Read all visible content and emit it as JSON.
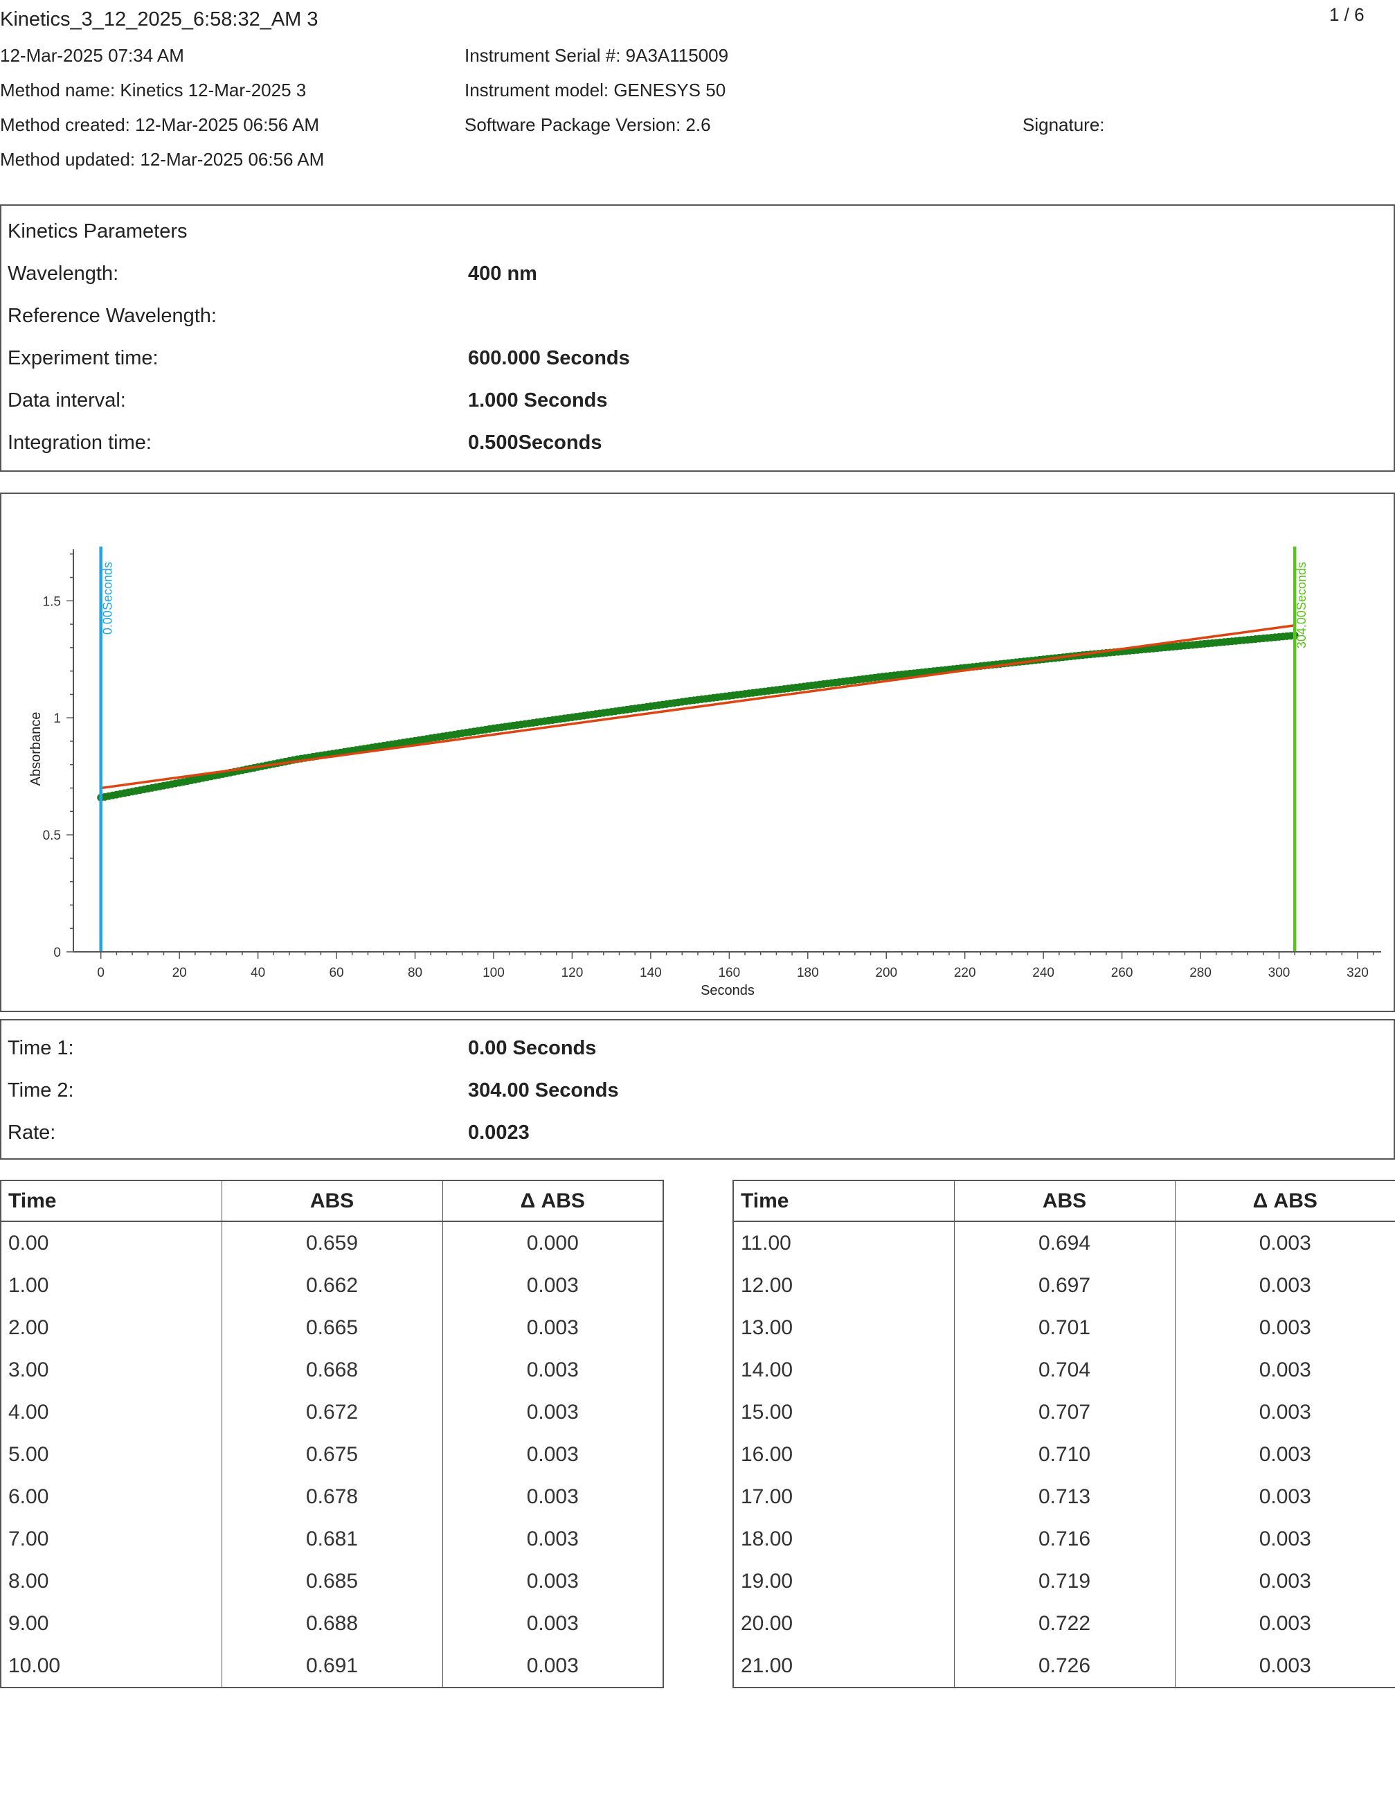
{
  "header": {
    "title": "Kinetics_3_12_2025_6:58:32_AM 3",
    "page_indicator": "1 / 6",
    "date": "12-Mar-2025 07:34 AM",
    "method_name": "Method name: Kinetics 12-Mar-2025 3",
    "method_created": "Method created: 12-Mar-2025 06:56 AM",
    "method_updated": "Method updated: 12-Mar-2025 06:56 AM",
    "serial": "Instrument Serial #: 9A3A115009",
    "model": "Instrument model: GENESYS 50",
    "software": "Software Package Version: 2.6",
    "signature": "Signature:"
  },
  "params": {
    "heading": "Kinetics Parameters",
    "wavelength_label": "Wavelength:",
    "wavelength_value": "400 nm",
    "ref_wavelength_label": "Reference Wavelength:",
    "ref_wavelength_value": "",
    "experiment_time_label": "Experiment time:",
    "experiment_time_value": "600.000 Seconds",
    "data_interval_label": "Data interval:",
    "data_interval_value": "1.000 Seconds",
    "integration_time_label": "Integration time:",
    "integration_time_value": "0.500Seconds"
  },
  "chart_data": {
    "type": "scatter",
    "xlabel": "Seconds",
    "ylabel": "Absorbance",
    "xlim": [
      -7,
      326
    ],
    "ylim": [
      0,
      1.72
    ],
    "x_ticks": [
      0,
      20,
      40,
      60,
      80,
      100,
      120,
      140,
      160,
      180,
      200,
      220,
      240,
      260,
      280,
      300,
      320
    ],
    "y_ticks": [
      0,
      0.5,
      1,
      1.5
    ],
    "y_tick_labels": [
      "0",
      "0.5",
      "1",
      "1.5"
    ],
    "series": [
      {
        "kind": "points",
        "color": "#1a7f1a",
        "x_start": 0,
        "x_end": 304,
        "x_step": 1,
        "anchors": [
          {
            "x": 0,
            "y": 0.659
          },
          {
            "x": 10,
            "y": 0.691
          },
          {
            "x": 21,
            "y": 0.726
          },
          {
            "x": 50,
            "y": 0.823
          },
          {
            "x": 100,
            "y": 0.955
          },
          {
            "x": 150,
            "y": 1.073
          },
          {
            "x": 200,
            "y": 1.178
          },
          {
            "x": 250,
            "y": 1.268
          },
          {
            "x": 304,
            "y": 1.352
          }
        ]
      },
      {
        "kind": "fit-line",
        "color": "#dd4411",
        "points": [
          {
            "x": 0,
            "y": 0.7
          },
          {
            "x": 304,
            "y": 1.395
          }
        ]
      }
    ],
    "markers": [
      {
        "x": 0,
        "label": "0.00Seconds",
        "color": "#1ea6e6"
      },
      {
        "x": 304,
        "label": "304.00Seconds",
        "color": "#5cc21c"
      }
    ]
  },
  "results": {
    "time1_label": "Time 1:",
    "time1_value": "0.00 Seconds",
    "time2_label": "Time 2:",
    "time2_value": "304.00 Seconds",
    "rate_label": "Rate:",
    "rate_value": "0.0023"
  },
  "table": {
    "headers": [
      "Time",
      "ABS",
      "Δ ABS"
    ],
    "left_rows": [
      [
        "0.00",
        "0.659",
        "0.000"
      ],
      [
        "1.00",
        "0.662",
        "0.003"
      ],
      [
        "2.00",
        "0.665",
        "0.003"
      ],
      [
        "3.00",
        "0.668",
        "0.003"
      ],
      [
        "4.00",
        "0.672",
        "0.003"
      ],
      [
        "5.00",
        "0.675",
        "0.003"
      ],
      [
        "6.00",
        "0.678",
        "0.003"
      ],
      [
        "7.00",
        "0.681",
        "0.003"
      ],
      [
        "8.00",
        "0.685",
        "0.003"
      ],
      [
        "9.00",
        "0.688",
        "0.003"
      ],
      [
        "10.00",
        "0.691",
        "0.003"
      ]
    ],
    "right_rows": [
      [
        "11.00",
        "0.694",
        "0.003"
      ],
      [
        "12.00",
        "0.697",
        "0.003"
      ],
      [
        "13.00",
        "0.701",
        "0.003"
      ],
      [
        "14.00",
        "0.704",
        "0.003"
      ],
      [
        "15.00",
        "0.707",
        "0.003"
      ],
      [
        "16.00",
        "0.710",
        "0.003"
      ],
      [
        "17.00",
        "0.713",
        "0.003"
      ],
      [
        "18.00",
        "0.716",
        "0.003"
      ],
      [
        "19.00",
        "0.719",
        "0.003"
      ],
      [
        "20.00",
        "0.722",
        "0.003"
      ],
      [
        "21.00",
        "0.726",
        "0.003"
      ]
    ]
  }
}
